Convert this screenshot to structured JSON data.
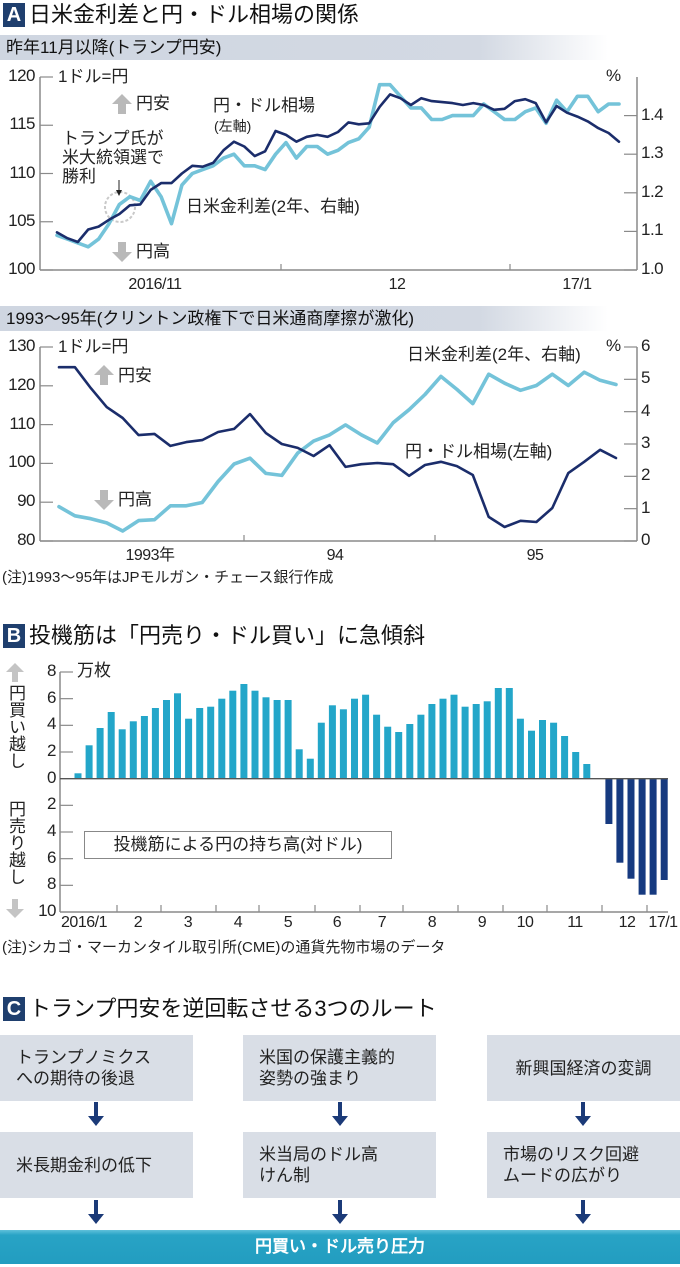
{
  "colors": {
    "badge": "#1f3f6e",
    "usd_jpy_line": "#1b2d6b",
    "rate_diff_line": "#74c3d9",
    "bar_yen_long": "#23a6c9",
    "bar_yen_short": "#163a80",
    "flow_box": "#d9dee6",
    "flow_arrow": "#1b3a78",
    "result_bar": "#229dc0"
  },
  "sectionA": {
    "badge": "A",
    "title": "日米金利差と円・ドル相場の関係",
    "chart1": {
      "unit_label": "1ドル=円",
      "yen_weak": "円安",
      "yen_strong": "円高",
      "usd_jpy_label": "円・ドル相場",
      "usd_jpy_axis_note": "(左軸)",
      "rate_label": "日米金利差(2年、右軸)",
      "event_note": "トランプ氏が\n米大統領選で\n勝利"
    },
    "chart2": {
      "unit_label": "1ドル=円",
      "yen_weak": "円安",
      "yen_strong": "円高",
      "rate_label": "日米金利差(2年、右軸)",
      "usd_jpy_label": "円・ドル相場(左軸)"
    },
    "note": "(注)1993〜95年はJPモルガン・チェース銀行作成"
  },
  "sectionB": {
    "badge": "B",
    "title": "投機筋は「円売り・ドル買い」に急傾斜",
    "unit": "万枚",
    "buy_label": "円買い越し",
    "sell_label": "円売り越し",
    "legend": "投機筋による円の持ち高(対ドル)",
    "note": "(注)シカゴ・マーカンタイル取引所(CME)の通貨先物市場のデータ"
  },
  "sectionC": {
    "badge": "C",
    "title": "トランプ円安を逆回転させる3つのルート",
    "routes": [
      {
        "cause": "トランプノミクス\nへの期待の後退",
        "effect": "米長期金利の低下"
      },
      {
        "cause": "米国の保護主義的\n姿勢の強まり",
        "effect": "米当局のドル高\nけん制"
      },
      {
        "cause": "新興国経済の変調",
        "effect": "市場のリスク回避\nムードの広がり"
      }
    ],
    "result": "円買い・ドル売り圧力"
  },
  "chart_data": [
    {
      "type": "line",
      "title": "昨年11月以降(トランプ円安)",
      "x_tick_labels": [
        "2016/11",
        "12",
        "17/1"
      ],
      "left_axis": {
        "label": "1ドル=円",
        "range": [
          100,
          120
        ],
        "ticks": [
          100,
          105,
          110,
          115,
          120
        ],
        "tick_labels": [
          "100",
          "105",
          "110",
          "115",
          "120"
        ]
      },
      "right_axis": {
        "label": "%",
        "range": [
          1.0,
          1.5
        ],
        "ticks": [
          1.0,
          1.1,
          1.2,
          1.3,
          1.4
        ],
        "tick_labels": [
          "1.0",
          "1.1",
          "1.2",
          "1.3",
          "1.4"
        ]
      },
      "grid": false,
      "series": [
        {
          "name": "日米金利差(2年、右軸)",
          "axis": "right",
          "color_key": "rate_diff_line",
          "values": [
            1.09,
            1.08,
            1.07,
            1.06,
            1.08,
            1.12,
            1.17,
            1.19,
            1.18,
            1.23,
            1.19,
            1.12,
            1.22,
            1.25,
            1.26,
            1.27,
            1.29,
            1.3,
            1.27,
            1.27,
            1.26,
            1.3,
            1.33,
            1.29,
            1.32,
            1.32,
            1.3,
            1.31,
            1.33,
            1.34,
            1.37,
            1.48,
            1.48,
            1.45,
            1.42,
            1.42,
            1.39,
            1.39,
            1.4,
            1.4,
            1.4,
            1.43,
            1.41,
            1.39,
            1.39,
            1.41,
            1.42,
            1.38,
            1.44,
            1.41,
            1.45,
            1.45,
            1.41,
            1.43,
            1.43
          ]
        },
        {
          "name": "円・ドル相場(左軸)",
          "axis": "left",
          "color_key": "usd_jpy_line",
          "values": [
            103.9,
            103.3,
            102.9,
            104.2,
            104.5,
            105.2,
            105.8,
            106.7,
            106.8,
            108.3,
            109.0,
            109.0,
            110.0,
            110.8,
            110.7,
            111.1,
            112.4,
            113.3,
            112.8,
            111.8,
            112.3,
            114.4,
            114.0,
            113.3,
            113.8,
            114.0,
            113.8,
            114.3,
            115.3,
            115.1,
            115.2,
            116.9,
            118.2,
            117.8,
            117.1,
            117.8,
            117.5,
            117.4,
            117.3,
            117.1,
            117.3,
            117.1,
            116.6,
            116.7,
            117.5,
            117.7,
            117.3,
            115.3,
            117.0,
            116.3,
            115.9,
            115.4,
            114.7,
            114.2,
            113.3
          ]
        }
      ]
    },
    {
      "type": "line",
      "title": "1993〜95年(クリントン政権下で日米通商摩擦が激化)",
      "x_tick_labels": [
        "1993年",
        "94",
        "95"
      ],
      "left_axis": {
        "label": "1ドル=円",
        "range": [
          80,
          130
        ],
        "ticks": [
          80,
          90,
          100,
          110,
          120,
          130
        ],
        "tick_labels": [
          "80",
          "90",
          "100",
          "110",
          "120",
          "130"
        ]
      },
      "right_axis": {
        "label": "%",
        "range": [
          0,
          6
        ],
        "ticks": [
          0,
          1,
          2,
          3,
          4,
          5,
          6
        ],
        "tick_labels": [
          "0",
          "1",
          "2",
          "3",
          "4",
          "5",
          "6"
        ]
      },
      "grid": false,
      "series": [
        {
          "name": "日米金利差(2年、右軸)",
          "axis": "right",
          "color_key": "rate_diff_line",
          "values": [
            1.06,
            0.78,
            0.69,
            0.56,
            0.31,
            0.63,
            0.66,
            1.09,
            1.09,
            1.19,
            1.84,
            2.38,
            2.56,
            2.09,
            2.03,
            2.72,
            3.09,
            3.28,
            3.59,
            3.28,
            3.03,
            3.66,
            4.06,
            4.53,
            5.09,
            4.69,
            4.25,
            5.16,
            4.88,
            4.66,
            4.81,
            5.16,
            4.81,
            5.22,
            4.97,
            4.84
          ]
        },
        {
          "name": "円・ドル相場(左軸)",
          "axis": "left",
          "color_key": "usd_jpy_line",
          "values": [
            124.8,
            124.8,
            119.4,
            114.5,
            111.7,
            107.3,
            107.6,
            104.5,
            105.5,
            106.0,
            108.1,
            108.9,
            112.7,
            107.8,
            105.0,
            104.0,
            101.9,
            104.7,
            99.1,
            99.8,
            100.1,
            99.8,
            96.8,
            99.6,
            100.4,
            99.3,
            97.0,
            86.2,
            83.6,
            85.2,
            84.9,
            88.5,
            97.5,
            100.4,
            103.5,
            101.4
          ]
        }
      ]
    },
    {
      "type": "bar",
      "title": "投機筋による円の持ち高(対ドル)",
      "ylabel": "万枚",
      "ylim": [
        -10,
        8
      ],
      "y_ticks": [
        8,
        6,
        4,
        2,
        0,
        -2,
        -4,
        -6,
        -8,
        -10
      ],
      "y_tick_labels": [
        "8",
        "6",
        "4",
        "2",
        "0",
        "2",
        "4",
        "6",
        "8",
        "10"
      ],
      "x_tick_labels": [
        "2016/1",
        "2",
        "3",
        "4",
        "5",
        "6",
        "7",
        "8",
        "9",
        "10",
        "11",
        "12",
        "17/1"
      ],
      "positive_label": "円買い越し",
      "negative_label": "円売り越し",
      "values": [
        0.4,
        2.5,
        3.8,
        5.0,
        3.7,
        4.3,
        4.7,
        5.3,
        5.9,
        6.4,
        4.5,
        5.3,
        5.4,
        6.0,
        6.6,
        7.1,
        6.6,
        6.1,
        5.9,
        5.9,
        2.2,
        1.5,
        4.2,
        5.5,
        5.2,
        6.0,
        6.3,
        4.8,
        3.9,
        3.5,
        4.1,
        4.8,
        5.6,
        6.0,
        6.3,
        5.4,
        5.6,
        5.8,
        6.8,
        6.8,
        4.5,
        3.6,
        4.4,
        4.2,
        3.2,
        2.0,
        1.1,
        0,
        -3.4,
        -6.3,
        -7.5,
        -8.7,
        -8.7,
        -7.6
      ]
    }
  ]
}
